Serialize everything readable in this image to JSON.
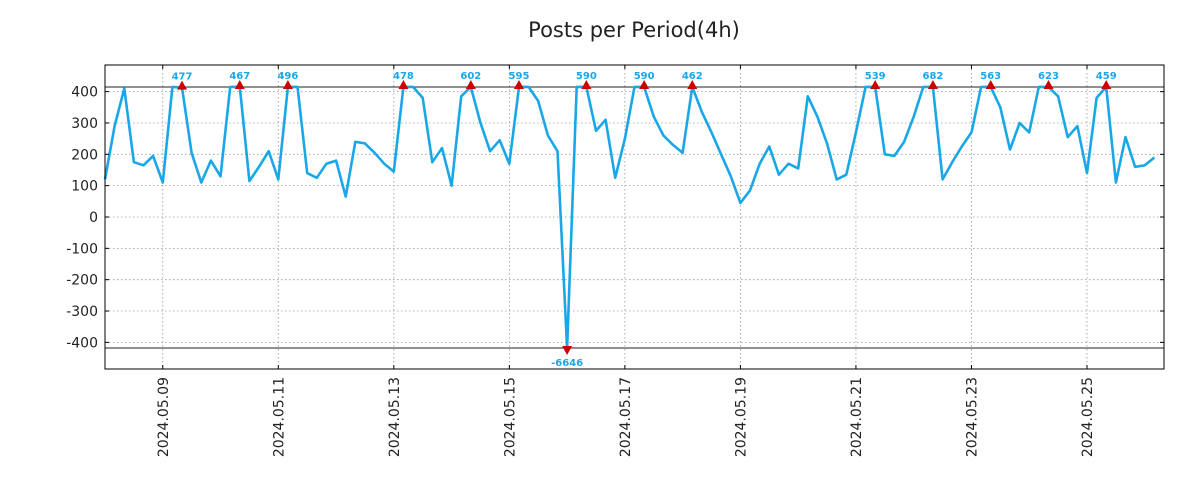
{
  "chart_data": {
    "type": "line",
    "title": "Posts per Period(4h)",
    "xlabel": "",
    "ylabel": "",
    "ylim": [
      -485,
      485
    ],
    "yticks": [
      400,
      300,
      200,
      100,
      0,
      -100,
      -200,
      -300,
      -400
    ],
    "x_start": "2024.05.08",
    "x_step_hours": 4,
    "x_end_index": 110,
    "xtick_labels": [
      "2024.05.09",
      "2024.05.11",
      "2024.05.13",
      "2024.05.15",
      "2024.05.17",
      "2024.05.19",
      "2024.05.21",
      "2024.05.23",
      "2024.05.25"
    ],
    "grid": true,
    "clip_upper": 415,
    "clip_lower": -418,
    "line_color": "#1aa7e8",
    "marker_color": "#cc0000",
    "values": [
      120,
      290,
      410,
      175,
      165,
      195,
      110,
      415,
      413,
      205,
      110,
      180,
      130,
      415,
      415,
      115,
      160,
      210,
      120,
      415,
      415,
      140,
      125,
      170,
      180,
      65,
      240,
      235,
      205,
      170,
      145,
      415,
      415,
      380,
      175,
      220,
      100,
      385,
      415,
      300,
      210,
      245,
      170,
      415,
      415,
      370,
      260,
      210,
      -418,
      415,
      415,
      275,
      310,
      125,
      250,
      415,
      415,
      320,
      260,
      230,
      205,
      415,
      335,
      270,
      200,
      130,
      45,
      85,
      170,
      225,
      135,
      170,
      155,
      385,
      320,
      235,
      120,
      135,
      270,
      415,
      415,
      200,
      195,
      240,
      320,
      415,
      415,
      120,
      175,
      225,
      270,
      415,
      415,
      350,
      215,
      300,
      270,
      415,
      415,
      385,
      255,
      290,
      140,
      380,
      415,
      110,
      255,
      160,
      165,
      190
    ],
    "peaks": [
      {
        "index": 8,
        "label": "477",
        "dir": "up"
      },
      {
        "index": 14,
        "label": "467",
        "dir": "up"
      },
      {
        "index": 19,
        "label": "496",
        "dir": "up"
      },
      {
        "index": 31,
        "label": "478",
        "dir": "up"
      },
      {
        "index": 38,
        "label": "602",
        "dir": "up"
      },
      {
        "index": 43,
        "label": "595",
        "dir": "up"
      },
      {
        "index": 48,
        "label": "-6646",
        "dir": "down"
      },
      {
        "index": 50,
        "label": "590",
        "dir": "up"
      },
      {
        "index": 56,
        "label": "590",
        "dir": "up"
      },
      {
        "index": 61,
        "label": "462",
        "dir": "up"
      },
      {
        "index": 80,
        "label": "539",
        "dir": "up"
      },
      {
        "index": 86,
        "label": "682",
        "dir": "up"
      },
      {
        "index": 92,
        "label": "563",
        "dir": "up"
      },
      {
        "index": 98,
        "label": "623",
        "dir": "up"
      },
      {
        "index": 104,
        "label": "459",
        "dir": "up"
      }
    ]
  }
}
